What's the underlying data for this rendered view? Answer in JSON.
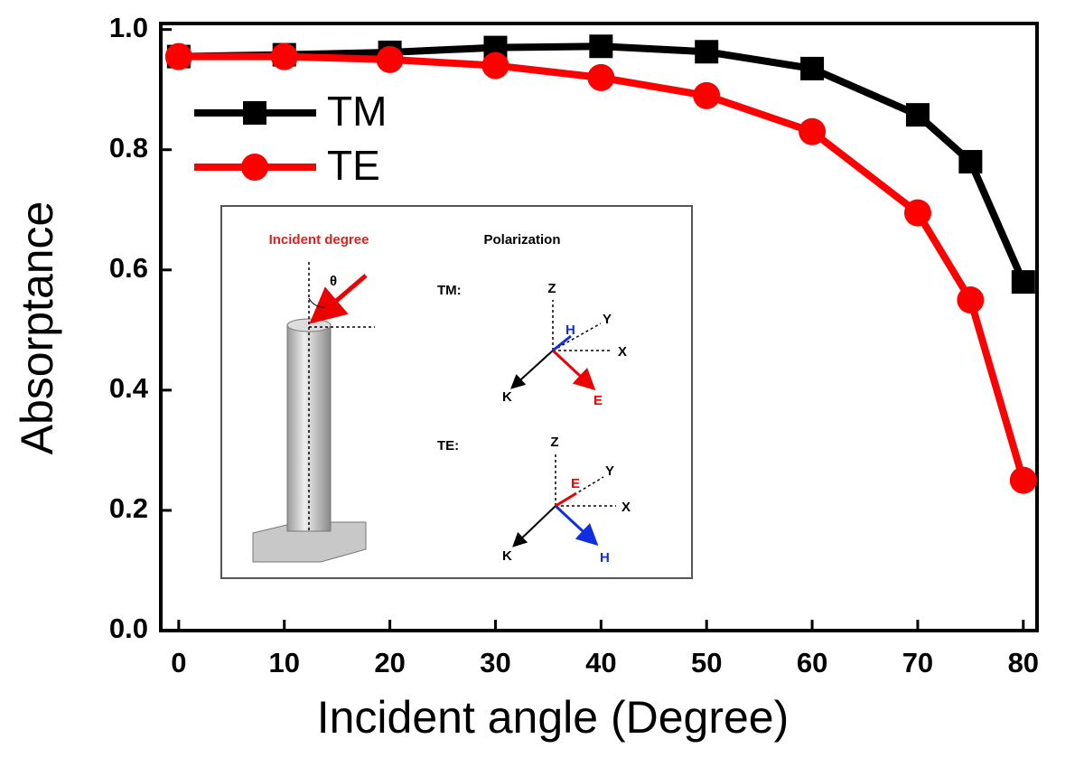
{
  "chart_data": {
    "type": "line",
    "xlabel": "Incident angle (Degree)",
    "ylabel": "Absorptance",
    "x": [
      0,
      10,
      20,
      30,
      40,
      50,
      60,
      70,
      75,
      80
    ],
    "series": [
      {
        "name": "TM",
        "color": "#000000",
        "marker": "square",
        "values": [
          0.955,
          0.958,
          0.962,
          0.97,
          0.972,
          0.963,
          0.935,
          0.858,
          0.78,
          0.58
        ]
      },
      {
        "name": "TE",
        "color": "#ff0000",
        "marker": "circle",
        "values": [
          0.955,
          0.955,
          0.95,
          0.94,
          0.92,
          0.89,
          0.83,
          0.695,
          0.55,
          0.25
        ]
      }
    ],
    "xlim": [
      -1.7,
      81.3
    ],
    "ylim": [
      0,
      1.01
    ],
    "xticks": [
      0,
      10,
      20,
      30,
      40,
      50,
      60,
      70,
      80
    ],
    "yticks": [
      {
        "value": 0,
        "label": "0.0"
      },
      0.2,
      0.4,
      0.6,
      0.8,
      {
        "value": 1,
        "label": "1.0"
      }
    ],
    "legend": "upper left",
    "inset": {
      "incident": "Incident degree",
      "theta": "θ",
      "polarization": "Polarization",
      "tm": {
        "label": "TM:",
        "z": "Z",
        "y": "Y",
        "x": "X",
        "k": "K",
        "h": "H",
        "e": "E"
      },
      "te": {
        "label": "TE:",
        "z": "Z",
        "y": "Y",
        "x": "X",
        "k": "K",
        "h": "H",
        "e": "E"
      }
    }
  }
}
